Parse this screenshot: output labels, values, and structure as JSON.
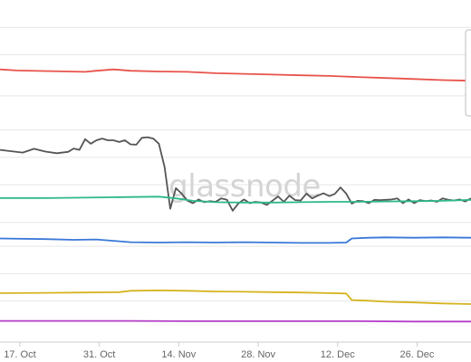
{
  "watermark": "glassnode",
  "chart_data": {
    "type": "line",
    "title": "",
    "xlabel": "",
    "ylabel": "",
    "x_ticks": [
      "17. Oct",
      "31. Oct",
      "14. Nov",
      "28. Nov",
      "12. Dec",
      "26. Dec"
    ],
    "x_tick_positions": [
      0.5,
      14.5,
      28.5,
      42.5,
      56.5,
      70.5
    ],
    "x_range": [
      -3,
      80
    ],
    "y_range": [
      0,
      100
    ],
    "y_gridlines": [
      12,
      20,
      28,
      35,
      46,
      54,
      62,
      72,
      84,
      92
    ],
    "grid": true,
    "legend": "top-right (partially visible, empty)",
    "series": [
      {
        "color": "#e8534a",
        "points": [
          [
            -3,
            79.7
          ],
          [
            0,
            79.4
          ],
          [
            6,
            79.2
          ],
          [
            12,
            79.0
          ],
          [
            14,
            79.3
          ],
          [
            17,
            79.7
          ],
          [
            20,
            79.3
          ],
          [
            25,
            79.1
          ],
          [
            30,
            79.0
          ],
          [
            35,
            78.6
          ],
          [
            40,
            78.4
          ],
          [
            45,
            78.2
          ],
          [
            50,
            78.0
          ],
          [
            55,
            77.8
          ],
          [
            60,
            77.5
          ],
          [
            65,
            77.2
          ],
          [
            70,
            76.9
          ],
          [
            75,
            76.6
          ],
          [
            80,
            76.4
          ]
        ]
      },
      {
        "color": "#555555",
        "points": [
          [
            -3,
            56.2
          ],
          [
            -1,
            55.8
          ],
          [
            1,
            55.4
          ],
          [
            3,
            56.5
          ],
          [
            5,
            55.7
          ],
          [
            7,
            55.2
          ],
          [
            9,
            55.6
          ],
          [
            10,
            56.6
          ],
          [
            11,
            56.2
          ],
          [
            12,
            59.3
          ],
          [
            13,
            58.0
          ],
          [
            14,
            59.0
          ],
          [
            15,
            59.5
          ],
          [
            16,
            59.0
          ],
          [
            17,
            59.0
          ],
          [
            18,
            58.5
          ],
          [
            19,
            59.0
          ],
          [
            20,
            57.8
          ],
          [
            21,
            57.7
          ],
          [
            22,
            59.7
          ],
          [
            23,
            59.9
          ],
          [
            24,
            59.5
          ],
          [
            25,
            58.0
          ],
          [
            26,
            51.2
          ],
          [
            27,
            39.0
          ],
          [
            28,
            45.0
          ],
          [
            29,
            43.4
          ],
          [
            30,
            41.4
          ],
          [
            31,
            40.6
          ],
          [
            32,
            41.7
          ],
          [
            33,
            40.9
          ],
          [
            34,
            41.2
          ],
          [
            35,
            41.0
          ],
          [
            36,
            42.0
          ],
          [
            37,
            41.6
          ],
          [
            38,
            38.4
          ],
          [
            39,
            40.5
          ],
          [
            40,
            41.7
          ],
          [
            41,
            40.6
          ],
          [
            42,
            41.0
          ],
          [
            43,
            40.8
          ],
          [
            44,
            40.1
          ],
          [
            45,
            41.3
          ],
          [
            46,
            42.6
          ],
          [
            47,
            41.0
          ],
          [
            48,
            42.8
          ],
          [
            49,
            41.5
          ],
          [
            50,
            41.4
          ],
          [
            51,
            43.4
          ],
          [
            52,
            42.0
          ],
          [
            53,
            42.8
          ],
          [
            54,
            43.5
          ],
          [
            55,
            42.7
          ],
          [
            56,
            43.3
          ],
          [
            57,
            45.2
          ],
          [
            58,
            43.4
          ],
          [
            59,
            40.5
          ],
          [
            60,
            41.3
          ],
          [
            61,
            41.2
          ],
          [
            62,
            40.6
          ],
          [
            63,
            41.6
          ],
          [
            64,
            41.5
          ],
          [
            65,
            41.6
          ],
          [
            66,
            41.7
          ],
          [
            67,
            42.0
          ],
          [
            68,
            40.6
          ],
          [
            69,
            41.7
          ],
          [
            70,
            40.6
          ],
          [
            71,
            41.5
          ],
          [
            72,
            41.2
          ],
          [
            73,
            41.4
          ],
          [
            74,
            41.0
          ],
          [
            75,
            42.0
          ],
          [
            76,
            41.6
          ],
          [
            77,
            41.4
          ],
          [
            78,
            41.7
          ],
          [
            79,
            41.1
          ],
          [
            80,
            42.0
          ]
        ]
      },
      {
        "color": "#2cb88a",
        "points": [
          [
            -3,
            42.1
          ],
          [
            5,
            42.1
          ],
          [
            10,
            42.2
          ],
          [
            15,
            42.3
          ],
          [
            20,
            42.4
          ],
          [
            25,
            42.5
          ],
          [
            28,
            42.0
          ],
          [
            31,
            41.3
          ],
          [
            35,
            40.9
          ],
          [
            40,
            40.8
          ],
          [
            45,
            40.8
          ],
          [
            50,
            40.9
          ],
          [
            55,
            41.0
          ],
          [
            60,
            41.0
          ],
          [
            65,
            41.1
          ],
          [
            70,
            41.2
          ],
          [
            75,
            41.3
          ],
          [
            80,
            41.6
          ]
        ]
      },
      {
        "color": "#3a78d8",
        "points": [
          [
            -3,
            30.3
          ],
          [
            5,
            30.1
          ],
          [
            10,
            29.9
          ],
          [
            14,
            30.0
          ],
          [
            17,
            29.6
          ],
          [
            20,
            29.2
          ],
          [
            25,
            29.1
          ],
          [
            30,
            29.2
          ],
          [
            35,
            29.1
          ],
          [
            40,
            29.2
          ],
          [
            45,
            29.1
          ],
          [
            50,
            29.0
          ],
          [
            55,
            29.0
          ],
          [
            58,
            29.1
          ],
          [
            59,
            30.3
          ],
          [
            62,
            30.5
          ],
          [
            65,
            30.6
          ],
          [
            70,
            30.5
          ],
          [
            75,
            30.6
          ],
          [
            80,
            30.5
          ]
        ]
      },
      {
        "color": "#d6b31f",
        "points": [
          [
            -3,
            14.3
          ],
          [
            5,
            14.4
          ],
          [
            12,
            14.5
          ],
          [
            18,
            14.6
          ],
          [
            20,
            15.0
          ],
          [
            25,
            15.1
          ],
          [
            30,
            15.0
          ],
          [
            35,
            14.8
          ],
          [
            40,
            14.7
          ],
          [
            45,
            14.6
          ],
          [
            50,
            14.5
          ],
          [
            55,
            14.3
          ],
          [
            58,
            14.2
          ],
          [
            59,
            12.3
          ],
          [
            62,
            12.1
          ],
          [
            65,
            11.8
          ],
          [
            70,
            11.6
          ],
          [
            75,
            11.3
          ],
          [
            80,
            11.1
          ]
        ]
      },
      {
        "color": "#b43cc8",
        "points": [
          [
            -3,
            6.2
          ],
          [
            10,
            6.2
          ],
          [
            20,
            6.2
          ],
          [
            30,
            6.1
          ],
          [
            40,
            6.1
          ],
          [
            50,
            6.1
          ],
          [
            60,
            6.1
          ],
          [
            70,
            6.0
          ],
          [
            80,
            6.0
          ]
        ]
      }
    ]
  }
}
